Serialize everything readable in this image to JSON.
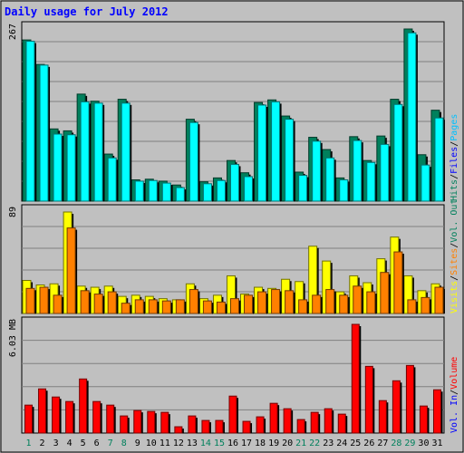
{
  "chart_data": {
    "title": "Daily usage for July 2012",
    "type": "bar",
    "categories": [
      "1",
      "2",
      "3",
      "4",
      "5",
      "6",
      "7",
      "8",
      "9",
      "10",
      "11",
      "12",
      "13",
      "14",
      "15",
      "16",
      "17",
      "18",
      "19",
      "20",
      "21",
      "22",
      "23",
      "24",
      "25",
      "26",
      "27",
      "28",
      "29",
      "30",
      "31"
    ],
    "weekend_days": [
      "1",
      "7",
      "8",
      "14",
      "15",
      "21",
      "22",
      "28",
      "29"
    ],
    "panels": [
      {
        "id": "hits-files",
        "max_label": "267",
        "ymax": 267,
        "series": [
          {
            "name": "Hits",
            "color": "#00805c",
            "values": [
              250,
              212,
              112,
              109,
              166,
              155,
              73,
              158,
              33,
              34,
              31,
              25,
              127,
              30,
              36,
              63,
              44,
              153,
              157,
              132,
              45,
              99,
              80,
              36,
              100,
              63,
              101,
              158,
              267,
              72,
              141
            ]
          },
          {
            "name": "Files",
            "color": "#00ffff",
            "values": [
              248,
              211,
              104,
              103,
              154,
              152,
              67,
              152,
              31,
              32,
              28,
              21,
              122,
              27,
              32,
              57,
              38,
              149,
              154,
              127,
              40,
              93,
              67,
              33,
              94,
              60,
              88,
              150,
              261,
              56,
              129
            ]
          },
          {
            "name": "Pages",
            "color": "#00c0ff",
            "values": []
          }
        ]
      },
      {
        "id": "visits-sites",
        "max_label": "89",
        "ymax": 89,
        "series": [
          {
            "name": "Visits",
            "color": "#ffff00",
            "values": [
              29,
              25,
              26,
              89,
              24,
              23,
              24,
              15,
              16,
              15,
              13,
              12,
              26,
              13,
              16,
              33,
              17,
              23,
              22,
              30,
              28,
              59,
              46,
              19,
              33,
              27,
              48,
              67,
              33,
              20,
              26
            ]
          },
          {
            "name": "Sites",
            "color": "#ff8000",
            "values": [
              22,
              23,
              16,
              75,
              20,
              17,
              19,
              9,
              12,
              12,
              11,
              12,
              21,
              11,
              10,
              13,
              16,
              19,
              21,
              20,
              12,
              16,
              21,
              16,
              24,
              19,
              36,
              54,
              12,
              14,
              23
            ]
          }
        ]
      },
      {
        "id": "volume",
        "max_label": "6.03 MB",
        "ymax": 6.03,
        "series": [
          {
            "name": "Volume",
            "color": "#ff0000",
            "values": [
              1.55,
              2.45,
              2.0,
              1.75,
              3.0,
              1.75,
              1.55,
              0.95,
              1.25,
              1.2,
              1.15,
              0.35,
              0.95,
              0.7,
              0.7,
              2.05,
              0.65,
              0.9,
              1.65,
              1.35,
              0.75,
              1.15,
              1.35,
              1.05,
              6.03,
              3.7,
              1.8,
              2.9,
              3.75,
              1.5,
              2.4
            ]
          }
        ]
      }
    ],
    "right_label_segments": [
      [
        {
          "text": "Hits",
          "color": "#00805c"
        },
        {
          "text": "/",
          "color": "#000000"
        },
        {
          "text": "Files",
          "color": "#0000ff"
        },
        {
          "text": "/",
          "color": "#000000"
        },
        {
          "text": "Pages",
          "color": "#00c0ff"
        }
      ],
      [
        {
          "text": "Visits",
          "color": "#ffff00"
        },
        {
          "text": "/",
          "color": "#000000"
        },
        {
          "text": "Sites",
          "color": "#ff8000"
        },
        {
          "text": "/",
          "color": "#000000"
        },
        {
          "text": "Vol. Out",
          "color": "#00805c"
        }
      ],
      [
        {
          "text": "Vol. In",
          "color": "#0000ff"
        },
        {
          "text": "/",
          "color": "#000000"
        },
        {
          "text": "Volume",
          "color": "#ff0000"
        }
      ]
    ],
    "colors": {
      "background": "#c0c0c0",
      "plot_bg": "#c0c0c0",
      "grid": "#808080",
      "weekday_label": "#000000",
      "weekend_label": "#00805c",
      "title": "#0000ff"
    }
  }
}
